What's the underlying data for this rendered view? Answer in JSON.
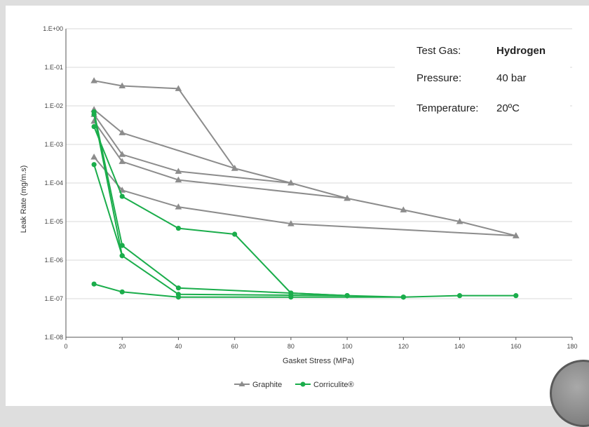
{
  "info": {
    "test_gas_label": "Test Gas:",
    "test_gas_value": "Hydrogen",
    "pressure_label": "Pressure:",
    "pressure_value": "40 bar",
    "temperature_label": "Temperature:",
    "temperature_value": "20ºC"
  },
  "chart_data": {
    "type": "line",
    "title": "",
    "xlabel": "Gasket Stress (MPa)",
    "ylabel": "Leak Rate (mg/m.s)",
    "xlim": [
      0,
      180
    ],
    "ylim": [
      1e-08,
      1
    ],
    "yscale": "log",
    "grid": "horizontal",
    "legend_position": "bottom-center",
    "x_ticks": [
      "0",
      "20",
      "40",
      "60",
      "80",
      "100",
      "120",
      "140",
      "160",
      "180"
    ],
    "y_ticks": [
      "1.E-08",
      "1.E-07",
      "1.E-06",
      "1.E-05",
      "1.E-04",
      "1.E-03",
      "1.E-02",
      "1.E-01",
      "1.E+00"
    ],
    "series": [
      {
        "name": "Graphite",
        "group": "Graphite",
        "color": "#8c8c8c",
        "marker": "triangle",
        "points": [
          [
            10,
            0.045
          ],
          [
            20,
            0.033
          ],
          [
            40,
            0.028
          ],
          [
            60,
            0.00024
          ],
          [
            80,
            0.0001
          ],
          [
            100,
            4e-05
          ],
          [
            120,
            2e-05
          ],
          [
            140,
            1e-05
          ],
          [
            160,
            4.3e-06
          ]
        ]
      },
      {
        "name": "",
        "group": "Graphite",
        "color": "#8c8c8c",
        "marker": "triangle",
        "points": [
          [
            10,
            0.008
          ],
          [
            20,
            0.002
          ],
          [
            60,
            0.00024
          ]
        ]
      },
      {
        "name": "",
        "group": "Graphite",
        "color": "#8c8c8c",
        "marker": "triangle",
        "points": [
          [
            10,
            0.006
          ],
          [
            20,
            0.00055
          ],
          [
            40,
            0.0002
          ],
          [
            80,
            0.0001
          ]
        ]
      },
      {
        "name": "",
        "group": "Graphite",
        "color": "#8c8c8c",
        "marker": "triangle",
        "points": [
          [
            10,
            0.004
          ],
          [
            20,
            0.00036
          ],
          [
            40,
            0.00012
          ],
          [
            100,
            4e-05
          ]
        ]
      },
      {
        "name": "",
        "group": "Graphite",
        "color": "#8c8c8c",
        "marker": "triangle",
        "points": [
          [
            10,
            0.00047
          ],
          [
            20,
            6.5e-05
          ],
          [
            40,
            2.4e-05
          ],
          [
            80,
            8.8e-06
          ],
          [
            160,
            4.3e-06
          ]
        ]
      },
      {
        "name": "Corriculite®",
        "group": "Corriculite®",
        "color": "#1aad4b",
        "marker": "circle",
        "points": [
          [
            10,
            0.0029
          ],
          [
            20,
            4.5e-05
          ],
          [
            40,
            6.7e-06
          ],
          [
            60,
            4.7e-06
          ],
          [
            80,
            1.4e-07
          ],
          [
            100,
            1.2e-07
          ],
          [
            120,
            1.1e-07
          ],
          [
            140,
            1.2e-07
          ],
          [
            160,
            1.2e-07
          ]
        ]
      },
      {
        "name": "",
        "group": "Corriculite®",
        "color": "#1aad4b",
        "marker": "circle",
        "points": [
          [
            10,
            0.007
          ],
          [
            20,
            2.4e-06
          ],
          [
            40,
            1.9e-07
          ],
          [
            80,
            1.4e-07
          ],
          [
            100,
            1.2e-07
          ]
        ]
      },
      {
        "name": "",
        "group": "Corriculite®",
        "color": "#1aad4b",
        "marker": "circle",
        "points": [
          [
            10,
            0.006
          ],
          [
            20,
            1.3e-06
          ],
          [
            40,
            1.3e-07
          ],
          [
            100,
            1.2e-07
          ]
        ]
      },
      {
        "name": "",
        "group": "Corriculite®",
        "color": "#1aad4b",
        "marker": "circle",
        "points": [
          [
            10,
            0.0003
          ],
          [
            20,
            1.3e-06
          ]
        ]
      },
      {
        "name": "",
        "group": "Corriculite®",
        "color": "#1aad4b",
        "marker": "circle",
        "points": [
          [
            10,
            2.4e-07
          ],
          [
            20,
            1.5e-07
          ],
          [
            40,
            1.1e-07
          ],
          [
            80,
            1.1e-07
          ],
          [
            120,
            1.1e-07
          ]
        ]
      }
    ],
    "legend": [
      {
        "label": "Graphite",
        "color": "#8c8c8c",
        "marker": "triangle"
      },
      {
        "label": "Corriculite®",
        "color": "#1aad4b",
        "marker": "circle"
      }
    ]
  }
}
